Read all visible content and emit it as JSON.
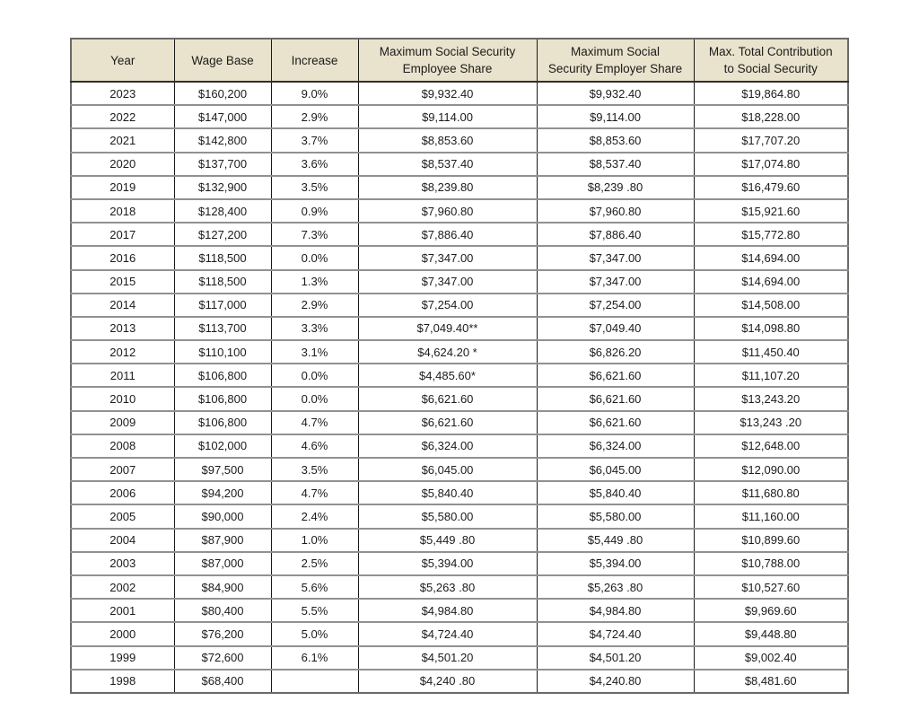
{
  "colors": {
    "header-bg": "#e9e2cc",
    "border-outer": "#6b6b66",
    "border-header": "#2e2e2e",
    "border-row": "#919191",
    "border-col": "#1a1a1a"
  },
  "table": {
    "columns": [
      "Year",
      "Wage Base",
      "Increase",
      "Maximum Social Security\nEmployee Share",
      "Maximum Social\nSecurity Employer Share",
      "Max. Total Contribution\nto Social Security"
    ],
    "rows": [
      [
        "2023",
        "$160,200",
        "9.0%",
        "$9,932.40",
        "$9,932.40",
        "$19,864.80"
      ],
      [
        "2022",
        "$147,000",
        "2.9%",
        "$9,114.00",
        "$9,114.00",
        "$18,228.00"
      ],
      [
        "2021",
        "$142,800",
        "3.7%",
        "$8,853.60",
        "$8,853.60",
        "$17,707.20"
      ],
      [
        "2020",
        "$137,700",
        "3.6%",
        "$8,537.40",
        "$8,537.40",
        "$17,074.80"
      ],
      [
        "2019",
        "$132,900",
        "3.5%",
        "$8,239.80",
        "$8,239 .80",
        "$16,479.60"
      ],
      [
        "2018",
        "$128,400",
        "0.9%",
        "$7,960.80",
        "$7,960.80",
        "$15,921.60"
      ],
      [
        "2017",
        "$127,200",
        "7.3%",
        "$7,886.40",
        "$7,886.40",
        "$15,772.80"
      ],
      [
        "2016",
        "$118,500",
        "0.0%",
        "$7,347.00",
        "$7,347.00",
        "$14,694.00"
      ],
      [
        "2015",
        "$118,500",
        "1.3%",
        "$7,347.00",
        "$7,347.00",
        "$14,694.00"
      ],
      [
        "2014",
        "$117,000",
        "2.9%",
        "$7,254.00",
        "$7,254.00",
        "$14,508.00"
      ],
      [
        "2013",
        "$113,700",
        "3.3%",
        "$7,049.40**",
        "$7,049.40",
        "$14,098.80"
      ],
      [
        "2012",
        "$110,100",
        "3.1%",
        "$4,624.20 *",
        "$6,826.20",
        "$11,450.40"
      ],
      [
        "2011",
        "$106,800",
        "0.0%",
        "$4,485.60*",
        "$6,621.60",
        "$11,107.20"
      ],
      [
        "2010",
        "$106,800",
        "0.0%",
        "$6,621.60",
        "$6,621.60",
        "$13,243.20"
      ],
      [
        "2009",
        "$106,800",
        "4.7%",
        "$6,621.60",
        "$6,621.60",
        "$13,243 .20"
      ],
      [
        "2008",
        "$102,000",
        "4.6%",
        "$6,324.00",
        "$6,324.00",
        "$12,648.00"
      ],
      [
        "2007",
        "$97,500",
        "3.5%",
        "$6,045.00",
        "$6,045.00",
        "$12,090.00"
      ],
      [
        "2006",
        "$94,200",
        "4.7%",
        "$5,840.40",
        "$5,840.40",
        "$11,680.80"
      ],
      [
        "2005",
        "$90,000",
        "2.4%",
        "$5,580.00",
        "$5,580.00",
        "$11,160.00"
      ],
      [
        "2004",
        "$87,900",
        "1.0%",
        "$5,449 .80",
        "$5,449 .80",
        "$10,899.60"
      ],
      [
        "2003",
        "$87,000",
        "2.5%",
        "$5,394.00",
        "$5,394.00",
        "$10,788.00"
      ],
      [
        "2002",
        "$84,900",
        "5.6%",
        "$5,263 .80",
        "$5,263 .80",
        "$10,527.60"
      ],
      [
        "2001",
        "$80,400",
        "5.5%",
        "$4,984.80",
        "$4,984.80",
        "$9,969.60"
      ],
      [
        "2000",
        "$76,200",
        "5.0%",
        "$4,724.40",
        "$4,724.40",
        "$9,448.80"
      ],
      [
        "1999",
        "$72,600",
        "6.1%",
        "$4,501.20",
        "$4,501.20",
        "$9,002.40"
      ],
      [
        "1998",
        "$68,400",
        "",
        "$4,240 .80",
        "$4,240.80",
        "$8,481.60"
      ]
    ]
  }
}
